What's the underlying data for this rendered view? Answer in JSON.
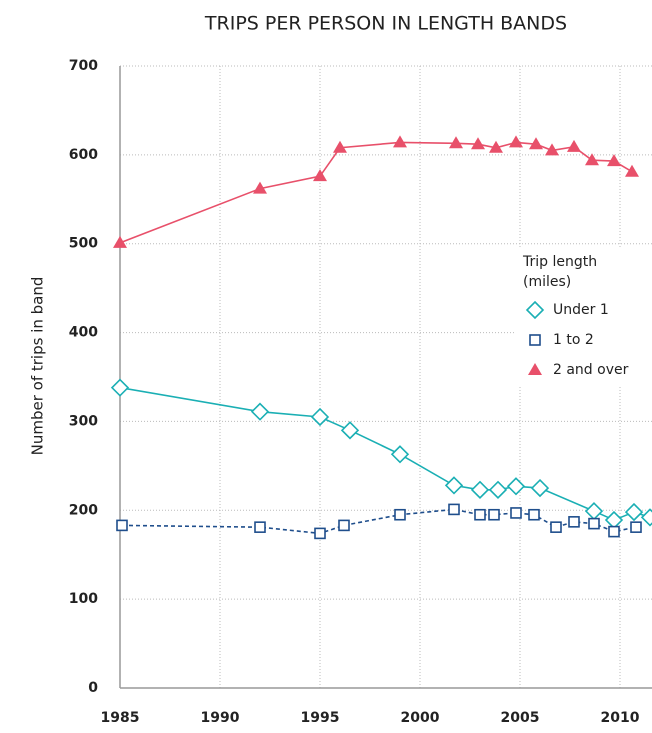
{
  "chart_data": {
    "type": "line",
    "title": "TRIPS PER PERSON IN LENGTH BANDS",
    "y_label": "Number of trips in band",
    "legend_title": [
      "Trip length",
      "(miles)"
    ],
    "xlim": [
      1985,
      2011.6
    ],
    "xticks": [
      1985,
      1990,
      1995,
      2000,
      2005,
      2010
    ],
    "ylim": [
      0,
      700
    ],
    "yticks": [
      0,
      100,
      200,
      300,
      400,
      500,
      600,
      700
    ],
    "grid": true,
    "series": [
      {
        "name": "Under 1",
        "color": "#1aafb4",
        "marker": "diamond",
        "dash": false,
        "x": [
          1985,
          1992,
          1995,
          1996.5,
          1999,
          2001.7,
          2003,
          2003.9,
          2004.8,
          2006,
          2008.7,
          2009.7,
          2010.7,
          2011.5
        ],
        "values": [
          338,
          311,
          305,
          290,
          263,
          228,
          223,
          223,
          227,
          225,
          199,
          189,
          198,
          192
        ]
      },
      {
        "name": "1 to 2",
        "color": "#1f4e8c",
        "marker": "square",
        "dash": true,
        "x": [
          1985.1,
          1992,
          1995,
          1996.2,
          1999,
          2001.7,
          2003,
          2003.7,
          2004.8,
          2005.7,
          2006.8,
          2007.7,
          2008.7,
          2009.7,
          2010.8
        ],
        "values": [
          183,
          181,
          174,
          183,
          195,
          201,
          195,
          195,
          197,
          195,
          181,
          187,
          185,
          176,
          181
        ]
      },
      {
        "name": "2 and over",
        "color": "#e8506a",
        "marker": "triangle",
        "dash": false,
        "x": [
          1985,
          1992,
          1995,
          1996,
          1999,
          2001.8,
          2002.9,
          2003.8,
          2004.8,
          2005.8,
          2006.6,
          2007.7,
          2008.6,
          2009.7,
          2010.6
        ],
        "values": [
          501,
          562,
          576,
          608,
          614,
          613,
          612,
          608,
          614,
          612,
          605,
          609,
          594,
          593,
          581
        ]
      }
    ]
  }
}
